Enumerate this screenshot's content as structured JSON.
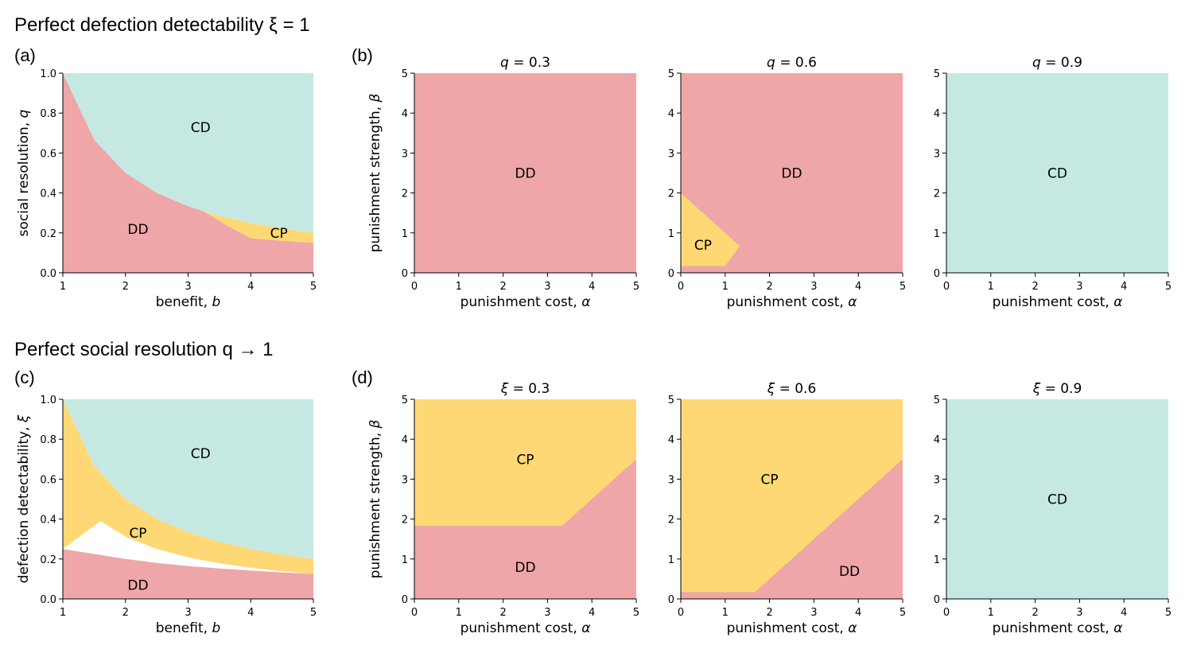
{
  "colors": {
    "CD": "#c5e9e2",
    "DD": "#eea6a8",
    "CP": "#fed874"
  },
  "sections": {
    "top_title": "Perfect defection detectability ξ = 1",
    "bottom_title": "Perfect social resolution q → 1"
  },
  "panel_labels": {
    "a": "(a)",
    "b": "(b)",
    "c": "(c)",
    "d": "(d)"
  },
  "chart_data": [
    {
      "id": "a",
      "type": "area",
      "xlabel_text": "benefit, ",
      "xlabel_var": "b",
      "ylabel_text": "social resolution, ",
      "ylabel_var": "q",
      "xlim": [
        1,
        5
      ],
      "ylim": [
        0,
        1
      ],
      "xticks": [
        1,
        2,
        3,
        4,
        5
      ],
      "yticks": [
        0.0,
        0.2,
        0.4,
        0.6,
        0.8,
        1.0
      ],
      "ytick_labels": [
        "0.0",
        "0.2",
        "0.4",
        "0.6",
        "0.8",
        "1.0"
      ],
      "regions": [
        {
          "label": "CD",
          "color_key": "CD",
          "label_at": [
            3.2,
            0.73
          ],
          "polygon": [
            [
              1,
              1
            ],
            [
              1.5,
              0.667
            ],
            [
              2,
              0.5
            ],
            [
              2.5,
              0.4
            ],
            [
              3,
              0.333
            ],
            [
              3.25,
              0.307
            ],
            [
              3.5,
              0.286
            ],
            [
              4,
              0.25
            ],
            [
              4.5,
              0.222
            ],
            [
              5,
              0.2
            ],
            [
              5,
              1
            ]
          ]
        },
        {
          "label": "CP",
          "color_key": "CP",
          "label_at": [
            4.45,
            0.2
          ],
          "polygon": [
            [
              3.25,
              0.307
            ],
            [
              3.5,
              0.286
            ],
            [
              4,
              0.25
            ],
            [
              4.5,
              0.222
            ],
            [
              5,
              0.2
            ],
            [
              5,
              0.15
            ],
            [
              4.5,
              0.16
            ],
            [
              4,
              0.173
            ],
            [
              3.6,
              0.24
            ]
          ]
        },
        {
          "label": "DD",
          "color_key": "DD",
          "label_at": [
            2.2,
            0.22
          ],
          "polygon": [
            [
              1,
              0
            ],
            [
              5,
              0
            ],
            [
              5,
              0.15
            ],
            [
              4.5,
              0.16
            ],
            [
              4,
              0.173
            ],
            [
              3.6,
              0.24
            ],
            [
              3.25,
              0.307
            ],
            [
              3,
              0.333
            ],
            [
              2.5,
              0.4
            ],
            [
              2,
              0.5
            ],
            [
              1.5,
              0.667
            ],
            [
              1,
              1
            ]
          ]
        }
      ]
    },
    {
      "id": "b1",
      "type": "area",
      "title_var": "q",
      "title_val": " = 0.3",
      "xlabel_text": "punishment cost, ",
      "xlabel_var": "α",
      "ylabel_text": "punishment strength, ",
      "ylabel_var": "β",
      "xlim": [
        0,
        5
      ],
      "ylim": [
        0,
        5
      ],
      "xticks": [
        0,
        1,
        2,
        3,
        4,
        5
      ],
      "yticks": [
        0,
        1,
        2,
        3,
        4,
        5
      ],
      "ytick_labels": [
        "0",
        "1",
        "2",
        "3",
        "4",
        "5"
      ],
      "regions": [
        {
          "label": "DD",
          "color_key": "DD",
          "label_at": [
            2.5,
            2.5
          ],
          "polygon": [
            [
              0,
              0
            ],
            [
              5,
              0
            ],
            [
              5,
              5
            ],
            [
              0,
              5
            ]
          ]
        }
      ]
    },
    {
      "id": "b2",
      "type": "area",
      "title_var": "q",
      "title_val": " = 0.6",
      "xlabel_text": "punishment cost, ",
      "xlabel_var": "α",
      "xlim": [
        0,
        5
      ],
      "ylim": [
        0,
        5
      ],
      "xticks": [
        0,
        1,
        2,
        3,
        4,
        5
      ],
      "yticks": [
        0,
        1,
        2,
        3,
        4,
        5
      ],
      "ytick_labels": [
        "0",
        "1",
        "2",
        "3",
        "4",
        "5"
      ],
      "regions": [
        {
          "label": "DD",
          "color_key": "DD",
          "label_at": [
            2.5,
            2.5
          ],
          "polygon": [
            [
              0,
              0
            ],
            [
              5,
              0
            ],
            [
              5,
              5
            ],
            [
              0,
              5
            ]
          ]
        },
        {
          "label": "CP",
          "color_key": "CP",
          "label_at": [
            0.5,
            0.7
          ],
          "polygon": [
            [
              0,
              0.17
            ],
            [
              1,
              0.17
            ],
            [
              1.33,
              0.67
            ],
            [
              0,
              2
            ]
          ]
        }
      ]
    },
    {
      "id": "b3",
      "type": "area",
      "title_var": "q",
      "title_val": " = 0.9",
      "xlabel_text": "punishment cost, ",
      "xlabel_var": "α",
      "xlim": [
        0,
        5
      ],
      "ylim": [
        0,
        5
      ],
      "xticks": [
        0,
        1,
        2,
        3,
        4,
        5
      ],
      "yticks": [
        0,
        1,
        2,
        3,
        4,
        5
      ],
      "ytick_labels": [
        "0",
        "1",
        "2",
        "3",
        "4",
        "5"
      ],
      "regions": [
        {
          "label": "CD",
          "color_key": "CD",
          "label_at": [
            2.5,
            2.5
          ],
          "polygon": [
            [
              0,
              0
            ],
            [
              5,
              0
            ],
            [
              5,
              5
            ],
            [
              0,
              5
            ]
          ]
        }
      ]
    },
    {
      "id": "c",
      "type": "area",
      "xlabel_text": "benefit, ",
      "xlabel_var": "b",
      "ylabel_text": "defection detectability, ",
      "ylabel_var": "ξ",
      "xlim": [
        1,
        5
      ],
      "ylim": [
        0,
        1
      ],
      "xticks": [
        1,
        2,
        3,
        4,
        5
      ],
      "yticks": [
        0.0,
        0.2,
        0.4,
        0.6,
        0.8,
        1.0
      ],
      "ytick_labels": [
        "0.0",
        "0.2",
        "0.4",
        "0.6",
        "0.8",
        "1.0"
      ],
      "regions": [
        {
          "label": "CD",
          "color_key": "CD",
          "label_at": [
            3.2,
            0.73
          ],
          "polygon": [
            [
              1,
              1
            ],
            [
              1.5,
              0.667
            ],
            [
              2,
              0.5
            ],
            [
              2.5,
              0.4
            ],
            [
              3,
              0.333
            ],
            [
              3.5,
              0.286
            ],
            [
              4,
              0.25
            ],
            [
              4.5,
              0.222
            ],
            [
              5,
              0.2
            ],
            [
              5,
              1
            ]
          ]
        },
        {
          "label": "CP",
          "color_key": "CP",
          "label_at": [
            2.2,
            0.33
          ],
          "polygon": [
            [
              1,
              1
            ],
            [
              1.5,
              0.667
            ],
            [
              2,
              0.5
            ],
            [
              2.5,
              0.4
            ],
            [
              3,
              0.333
            ],
            [
              3.5,
              0.286
            ],
            [
              4,
              0.25
            ],
            [
              4.5,
              0.222
            ],
            [
              5,
              0.2
            ],
            [
              5,
              0.125
            ],
            [
              4.5,
              0.139
            ],
            [
              4,
              0.156
            ],
            [
              3.5,
              0.179
            ],
            [
              3,
              0.208
            ],
            [
              2.5,
              0.25
            ],
            [
              2,
              0.312
            ],
            [
              1.6,
              0.39
            ],
            [
              1,
              0.25
            ]
          ]
        },
        {
          "label": "DD",
          "color_key": "DD",
          "label_at": [
            2.2,
            0.07
          ],
          "polygon": [
            [
              1,
              0
            ],
            [
              5,
              0
            ],
            [
              5,
              0.125
            ],
            [
              4.5,
              0.133
            ],
            [
              4,
              0.142
            ],
            [
              3.5,
              0.152
            ],
            [
              3,
              0.165
            ],
            [
              2.5,
              0.18
            ],
            [
              2,
              0.2
            ],
            [
              1.5,
              0.225
            ],
            [
              1,
              0.25
            ]
          ]
        }
      ]
    },
    {
      "id": "d1",
      "type": "area",
      "title_var": "ξ",
      "title_val": " = 0.3",
      "xlabel_text": "punishment cost, ",
      "xlabel_var": "α",
      "ylabel_text": "punishment strength, ",
      "ylabel_var": "β",
      "xlim": [
        0,
        5
      ],
      "ylim": [
        0,
        5
      ],
      "xticks": [
        0,
        1,
        2,
        3,
        4,
        5
      ],
      "yticks": [
        0,
        1,
        2,
        3,
        4,
        5
      ],
      "ytick_labels": [
        "0",
        "1",
        "2",
        "3",
        "4",
        "5"
      ],
      "regions": [
        {
          "label": "CP",
          "color_key": "CP",
          "label_at": [
            2.5,
            3.5
          ],
          "polygon": [
            [
              0,
              0
            ],
            [
              5,
              0
            ],
            [
              5,
              5
            ],
            [
              0,
              5
            ]
          ]
        },
        {
          "label": "DD",
          "color_key": "DD",
          "label_at": [
            2.5,
            0.8
          ],
          "polygon": [
            [
              0,
              0
            ],
            [
              5,
              0
            ],
            [
              5,
              3.5
            ],
            [
              3.33,
              1.83
            ],
            [
              0,
              1.83
            ]
          ]
        }
      ]
    },
    {
      "id": "d2",
      "type": "area",
      "title_var": "ξ",
      "title_val": " = 0.6",
      "xlabel_text": "punishment cost, ",
      "xlabel_var": "α",
      "xlim": [
        0,
        5
      ],
      "ylim": [
        0,
        5
      ],
      "xticks": [
        0,
        1,
        2,
        3,
        4,
        5
      ],
      "yticks": [
        0,
        1,
        2,
        3,
        4,
        5
      ],
      "ytick_labels": [
        "0",
        "1",
        "2",
        "3",
        "4",
        "5"
      ],
      "regions": [
        {
          "label": "CP",
          "color_key": "CP",
          "label_at": [
            2,
            3.0
          ],
          "polygon": [
            [
              0,
              0
            ],
            [
              5,
              0
            ],
            [
              5,
              5
            ],
            [
              0,
              5
            ]
          ]
        },
        {
          "label": "DD",
          "color_key": "DD",
          "label_at": [
            3.8,
            0.7
          ],
          "polygon": [
            [
              0,
              0
            ],
            [
              5,
              0
            ],
            [
              5,
              3.5
            ],
            [
              1.67,
              0.17
            ],
            [
              0,
              0.17
            ]
          ]
        }
      ]
    },
    {
      "id": "d3",
      "type": "area",
      "title_var": "ξ",
      "title_val": " = 0.9",
      "xlabel_text": "punishment cost, ",
      "xlabel_var": "α",
      "xlim": [
        0,
        5
      ],
      "ylim": [
        0,
        5
      ],
      "xticks": [
        0,
        1,
        2,
        3,
        4,
        5
      ],
      "yticks": [
        0,
        1,
        2,
        3,
        4,
        5
      ],
      "ytick_labels": [
        "0",
        "1",
        "2",
        "3",
        "4",
        "5"
      ],
      "regions": [
        {
          "label": "CD",
          "color_key": "CD",
          "label_at": [
            2.5,
            2.5
          ],
          "polygon": [
            [
              0,
              0
            ],
            [
              5,
              0
            ],
            [
              5,
              5
            ],
            [
              0,
              5
            ]
          ]
        }
      ]
    }
  ]
}
